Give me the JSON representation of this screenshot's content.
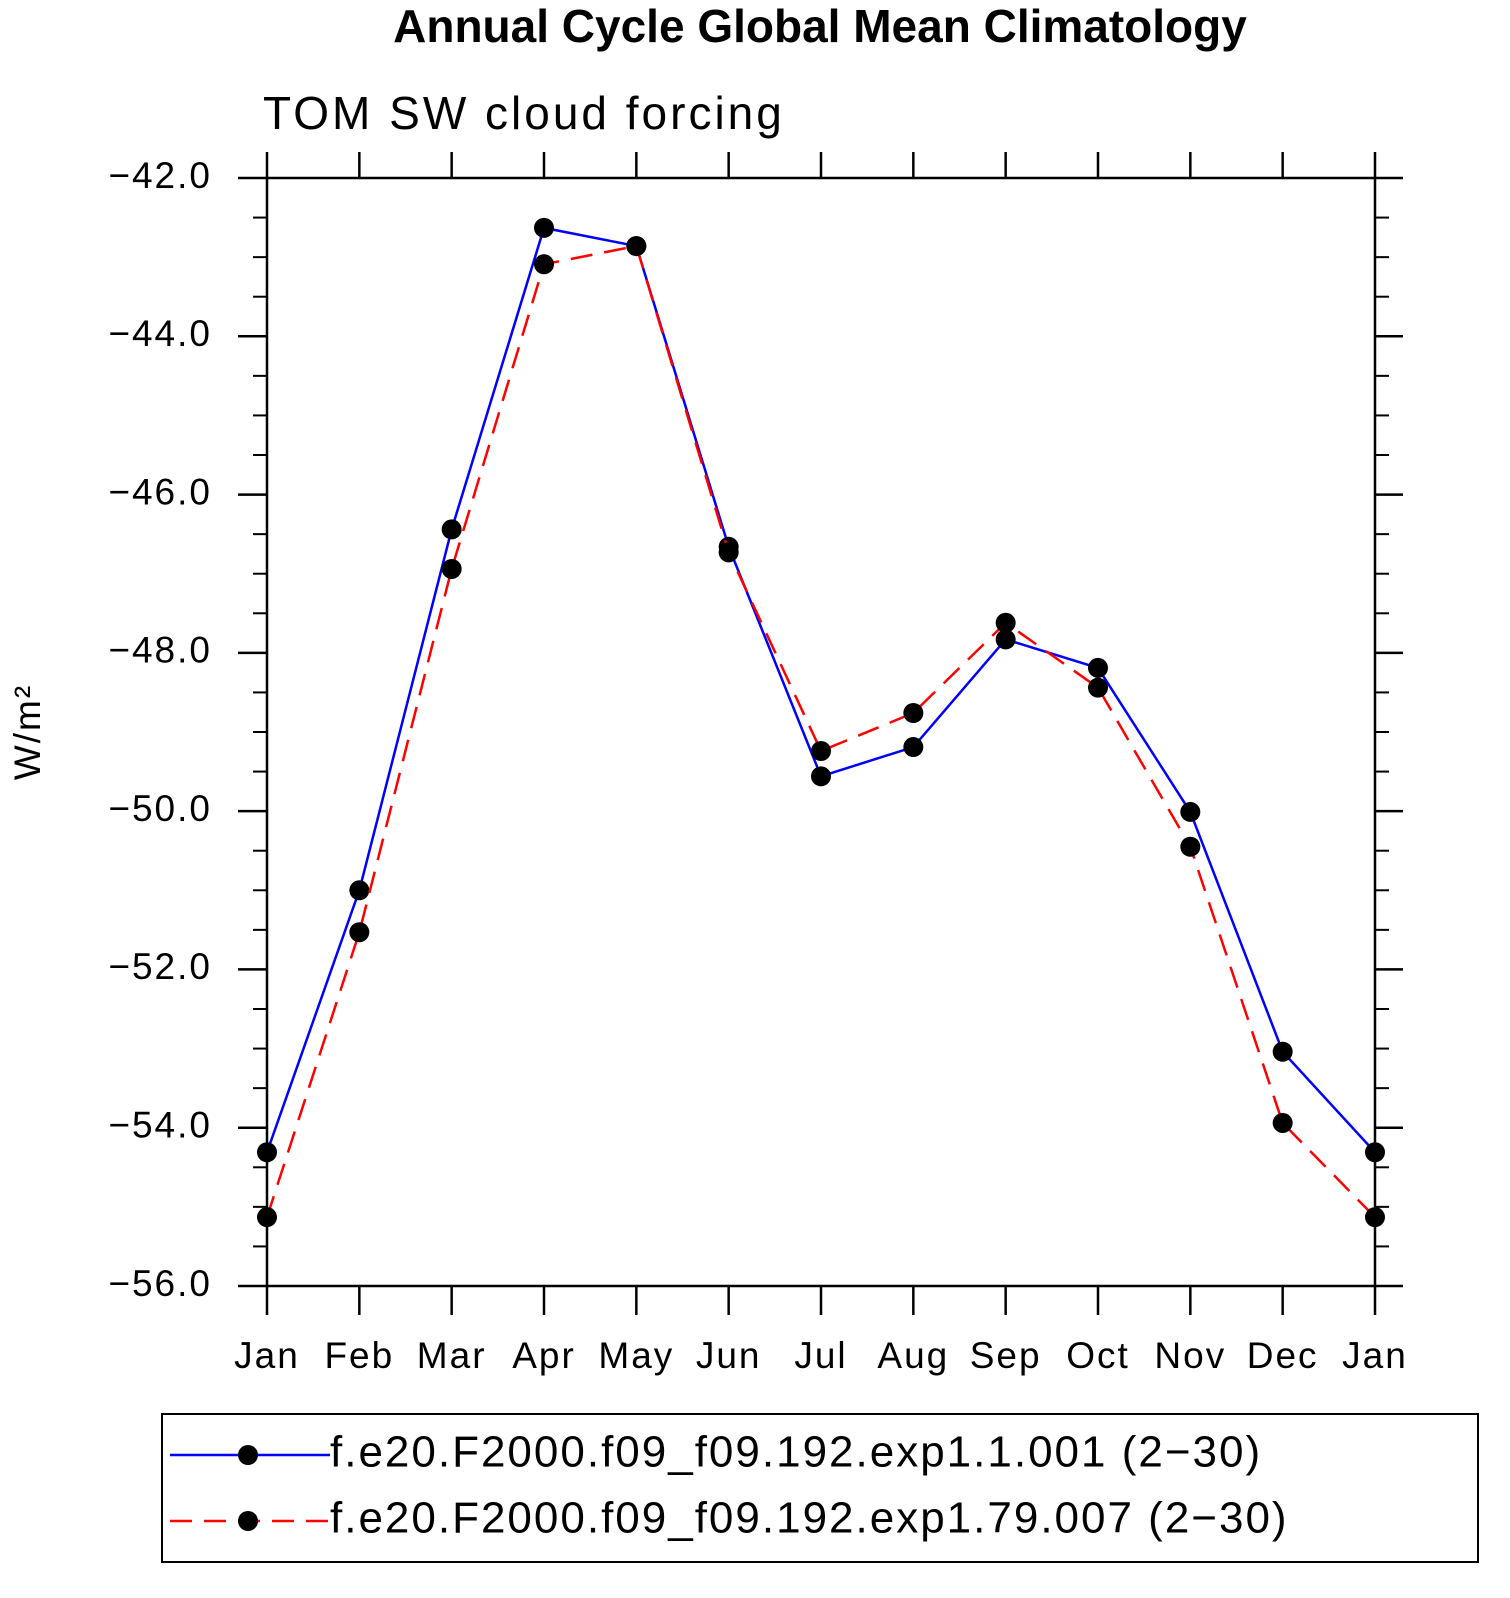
{
  "chart_data": {
    "type": "line",
    "title": "Annual Cycle Global Mean Climatology",
    "subtitle": "TOM SW cloud forcing",
    "y_label": "W/m²",
    "categories": [
      "Jan",
      "Feb",
      "Mar",
      "Apr",
      "May",
      "Jun",
      "Jul",
      "Aug",
      "Sep",
      "Oct",
      "Nov",
      "Dec",
      "Jan"
    ],
    "ylim": [
      -56,
      -42
    ],
    "yticks": [
      {
        "value": -42,
        "label": "−42.0"
      },
      {
        "value": -44,
        "label": "−44.0"
      },
      {
        "value": -46,
        "label": "−46.0"
      },
      {
        "value": -48,
        "label": "−48.0"
      },
      {
        "value": -50,
        "label": "−50.0"
      },
      {
        "value": -52,
        "label": "−52.0"
      },
      {
        "value": -54,
        "label": "−54.0"
      },
      {
        "value": -56,
        "label": "−56.0"
      }
    ],
    "yminorticks": [
      -42.5,
      -43,
      -43.5,
      -44.5,
      -45,
      -45.5,
      -46.5,
      -47,
      -47.5,
      -48.5,
      -49,
      -49.5,
      -50.5,
      -51,
      -51.5,
      -52.5,
      -53,
      -53.5,
      -54.5,
      -55,
      -55.5
    ],
    "series": [
      {
        "name": "f.e20.F2000.f09_f09.192.exp1.1.001 (2−30)",
        "color": "#0000ff",
        "dash": "solid",
        "values": [
          -54.31,
          -51.0,
          -46.44,
          -42.63,
          -42.86,
          -46.66,
          -49.56,
          -49.19,
          -47.83,
          -48.19,
          -50.01,
          -53.04,
          -54.31
        ]
      },
      {
        "name": "f.e20.F2000.f09_f09.192.exp1.79.007 (2−30)",
        "color": "#ff0000",
        "dash": "dashed",
        "values": [
          -55.13,
          -51.53,
          -46.94,
          -43.09,
          -42.86,
          -46.73,
          -49.24,
          -48.76,
          -47.62,
          -48.44,
          -50.45,
          -53.94,
          -55.13
        ]
      }
    ],
    "marker_color": "#000000"
  }
}
